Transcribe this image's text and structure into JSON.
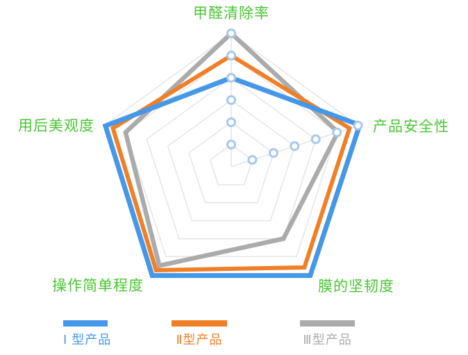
{
  "chart_data": {
    "type": "radar",
    "categories": [
      "甲醛清除率",
      "产品安全性",
      "膜的坚韧度",
      "操作简单程度",
      "用后美观度"
    ],
    "axis_max": 6,
    "rings": 6,
    "grid": true,
    "legend_position": "bottom",
    "tick_marker_axes": [
      0,
      1
    ],
    "series": [
      {
        "name": "Ⅰ型产品",
        "color": "#4597E8",
        "values": [
          4.0,
          6.08,
          6.05,
          6.05,
          5.95
        ]
      },
      {
        "name": "Ⅱ型产品",
        "color": "#F07F26",
        "values": [
          5.0,
          5.6,
          5.6,
          5.75,
          5.6
        ]
      },
      {
        "name": "Ⅲ型产品",
        "color": "#ABABAB",
        "values": [
          6.0,
          5.05,
          4.0,
          5.5,
          5.0
        ]
      }
    ],
    "colors": {
      "axis_label": "#49C533",
      "grid": "#E4E4E4",
      "marker_stroke": "#A6C8EC",
      "marker_fill": "#FFFFFF"
    }
  },
  "legend": {
    "items": [
      {
        "label": "Ⅰ 型产品",
        "color": "#4597E8"
      },
      {
        "label": "Ⅱ型产品",
        "color": "#F07F26"
      },
      {
        "label": "Ⅲ型产品",
        "color": "#ABABAB"
      }
    ]
  }
}
